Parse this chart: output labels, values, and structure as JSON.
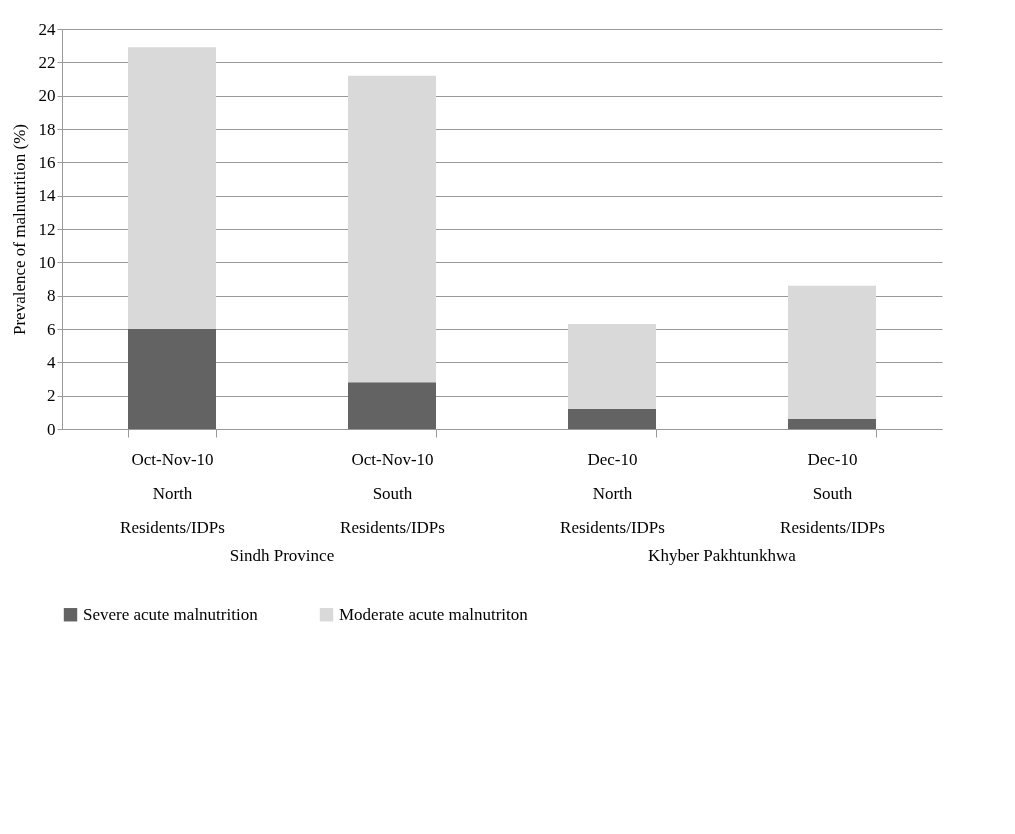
{
  "chart_data": {
    "type": "bar",
    "stacked": true,
    "ylabel": "Prevalence of malnutrition (%)",
    "categories": [
      "Oct-Nov-10\nNorth\nResidents/IDPs",
      "Oct-Nov-10\nSouth\nResidents/IDPs",
      "Dec-10\nNorth\nResidents/IDPs",
      "Dec-10\nSouth\nResidents/IDPs"
    ],
    "series": [
      {
        "name": "Severe acute malnutrition",
        "color": "#636363",
        "values": [
          6.0,
          2.8,
          1.2,
          0.6
        ]
      },
      {
        "name": "Moderate acute malnutriton",
        "color": "#d9d9d9",
        "values": [
          16.9,
          18.4,
          5.1,
          8.0
        ]
      }
    ],
    "annotations": [
      "Sindh Province",
      "Khyber Pakhtunkhwa"
    ],
    "ylim": [
      0,
      24
    ],
    "yticks": [
      0,
      2,
      4,
      6,
      8,
      10,
      12,
      14,
      16,
      18,
      20,
      22,
      24
    ],
    "grid": "y",
    "legend": "bottom"
  }
}
